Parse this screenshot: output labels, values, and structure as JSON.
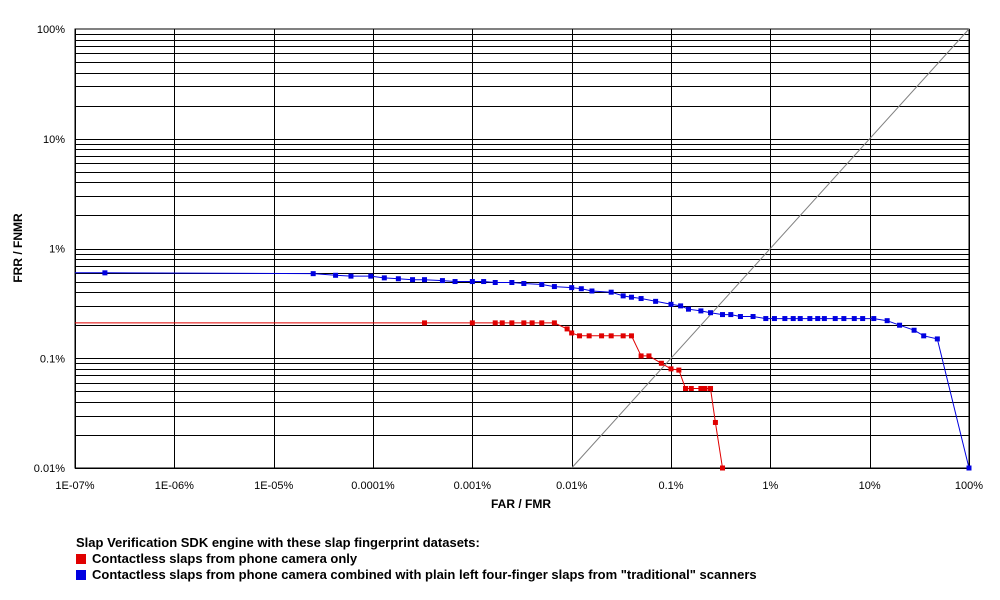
{
  "chart_data": {
    "type": "line",
    "title": "",
    "xlabel": "FAR / FMR",
    "ylabel": "FRR / FNMR",
    "x_scale": "log",
    "y_scale": "log",
    "xlim": [
      1e-07,
      100
    ],
    "ylim": [
      0.01,
      100
    ],
    "x_ticks": [
      {
        "value": 1e-07,
        "label": "1E-07%"
      },
      {
        "value": 1e-06,
        "label": "1E-06%"
      },
      {
        "value": 1e-05,
        "label": "1E-05%"
      },
      {
        "value": 0.0001,
        "label": "0.0001%"
      },
      {
        "value": 0.001,
        "label": "0.001%"
      },
      {
        "value": 0.01,
        "label": "0.01%"
      },
      {
        "value": 0.1,
        "label": "0.1%"
      },
      {
        "value": 1,
        "label": "1%"
      },
      {
        "value": 10,
        "label": "10%"
      },
      {
        "value": 100,
        "label": "100%"
      }
    ],
    "y_ticks": [
      {
        "value": 0.01,
        "label": "0.01%"
      },
      {
        "value": 0.1,
        "label": "0.1%"
      },
      {
        "value": 1,
        "label": "1%"
      },
      {
        "value": 10,
        "label": "10%"
      },
      {
        "value": 100,
        "label": "100%"
      }
    ],
    "grid": true,
    "diagonal_line": {
      "color": "#808080",
      "x": [
        0.01,
        100
      ],
      "y": [
        0.01,
        100
      ]
    },
    "legend": {
      "placement": "bottom-left",
      "title": "Slap Verification SDK engine with these slap fingerprint datasets:"
    },
    "series": [
      {
        "name": "Contactless slaps from phone camera only",
        "color": "#e00000",
        "x": [
          1e-07,
          0.00033,
          0.001,
          0.0017,
          0.002,
          0.0025,
          0.0033,
          0.004,
          0.005,
          0.0067,
          0.009,
          0.01,
          0.012,
          0.015,
          0.02,
          0.025,
          0.033,
          0.04,
          0.05,
          0.06,
          0.08,
          0.1,
          0.12,
          0.14,
          0.16,
          0.2,
          0.22,
          0.25,
          0.28,
          0.33
        ],
        "y": [
          0.21,
          0.21,
          0.21,
          0.21,
          0.21,
          0.21,
          0.21,
          0.21,
          0.21,
          0.21,
          0.185,
          0.17,
          0.16,
          0.16,
          0.16,
          0.16,
          0.16,
          0.16,
          0.105,
          0.105,
          0.09,
          0.08,
          0.078,
          0.053,
          0.053,
          0.053,
          0.053,
          0.053,
          0.026,
          0.01
        ]
      },
      {
        "name": "Contactless slaps from phone camera combined with plain left four-finger slaps from \"traditional\" scanners",
        "color": "#0000e0",
        "x": [
          1e-07,
          2e-07,
          2.5e-05,
          4.2e-05,
          6e-05,
          9.5e-05,
          0.00013,
          0.00018,
          0.00025,
          0.00033,
          0.0005,
          0.00067,
          0.001,
          0.0013,
          0.0017,
          0.0025,
          0.0033,
          0.005,
          0.0067,
          0.01,
          0.0125,
          0.016,
          0.025,
          0.033,
          0.04,
          0.05,
          0.07,
          0.1,
          0.125,
          0.15,
          0.2,
          0.25,
          0.33,
          0.4,
          0.5,
          0.67,
          0.9,
          1.1,
          1.4,
          1.7,
          2.0,
          2.5,
          3.0,
          3.5,
          4.5,
          5.5,
          7,
          8.5,
          11,
          15,
          20,
          28,
          35,
          48,
          100
        ],
        "y": [
          0.6,
          0.6,
          0.59,
          0.57,
          0.56,
          0.56,
          0.54,
          0.53,
          0.52,
          0.52,
          0.51,
          0.5,
          0.5,
          0.5,
          0.49,
          0.49,
          0.48,
          0.47,
          0.45,
          0.44,
          0.43,
          0.41,
          0.4,
          0.37,
          0.36,
          0.35,
          0.33,
          0.31,
          0.3,
          0.28,
          0.27,
          0.26,
          0.25,
          0.25,
          0.24,
          0.24,
          0.23,
          0.23,
          0.23,
          0.23,
          0.23,
          0.23,
          0.23,
          0.23,
          0.23,
          0.23,
          0.23,
          0.23,
          0.23,
          0.22,
          0.2,
          0.18,
          0.16,
          0.15,
          0.01
        ]
      }
    ]
  }
}
